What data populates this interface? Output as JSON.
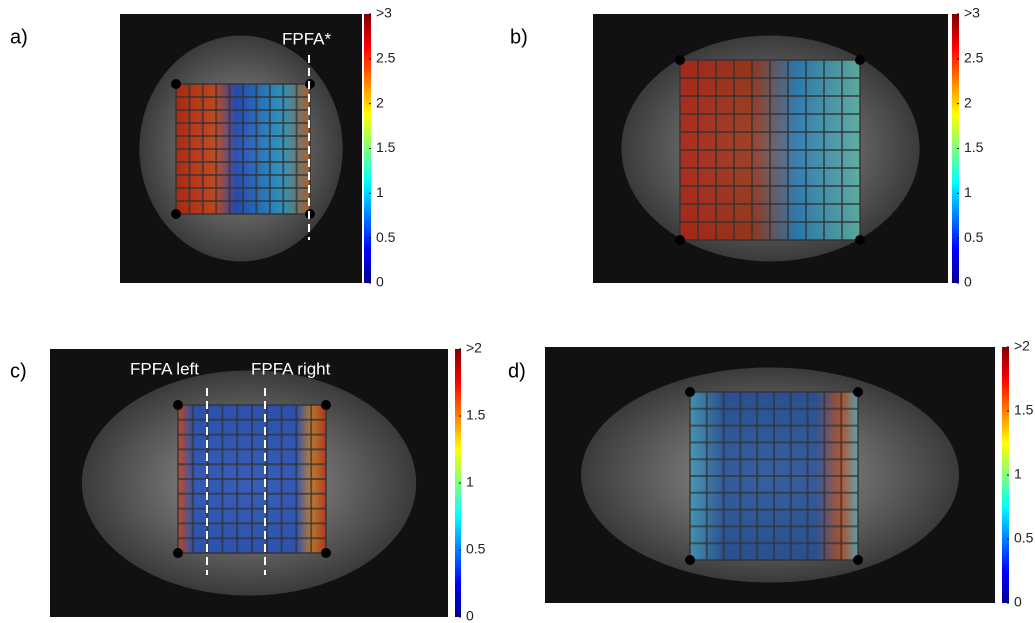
{
  "panels": [
    {
      "label": "a)",
      "annotations": [
        "FPFA*"
      ],
      "colorbar": {
        "range": [
          0,
          3
        ],
        "ticks": [
          0,
          0.5,
          1,
          1.5,
          2,
          2.5,
          {
            "value": 3,
            "label": ">3"
          }
        ]
      }
    },
    {
      "label": "b)",
      "annotations": [],
      "colorbar": {
        "range": [
          0,
          3
        ],
        "ticks": [
          0,
          0.5,
          1,
          1.5,
          2,
          2.5,
          {
            "value": 3,
            "label": ">3"
          }
        ]
      }
    },
    {
      "label": "c)",
      "annotations": [
        "FPFA left",
        "FPFA right"
      ],
      "colorbar": {
        "range": [
          0,
          2
        ],
        "ticks": [
          0,
          0.5,
          1,
          1.5,
          {
            "value": 2,
            "label": ">2"
          }
        ]
      }
    },
    {
      "label": "d)",
      "annotations": [],
      "colorbar": {
        "range": [
          0,
          2
        ],
        "ticks": [
          0,
          0.5,
          1,
          1.5,
          {
            "value": 2,
            "label": ">2"
          }
        ]
      }
    }
  ]
}
